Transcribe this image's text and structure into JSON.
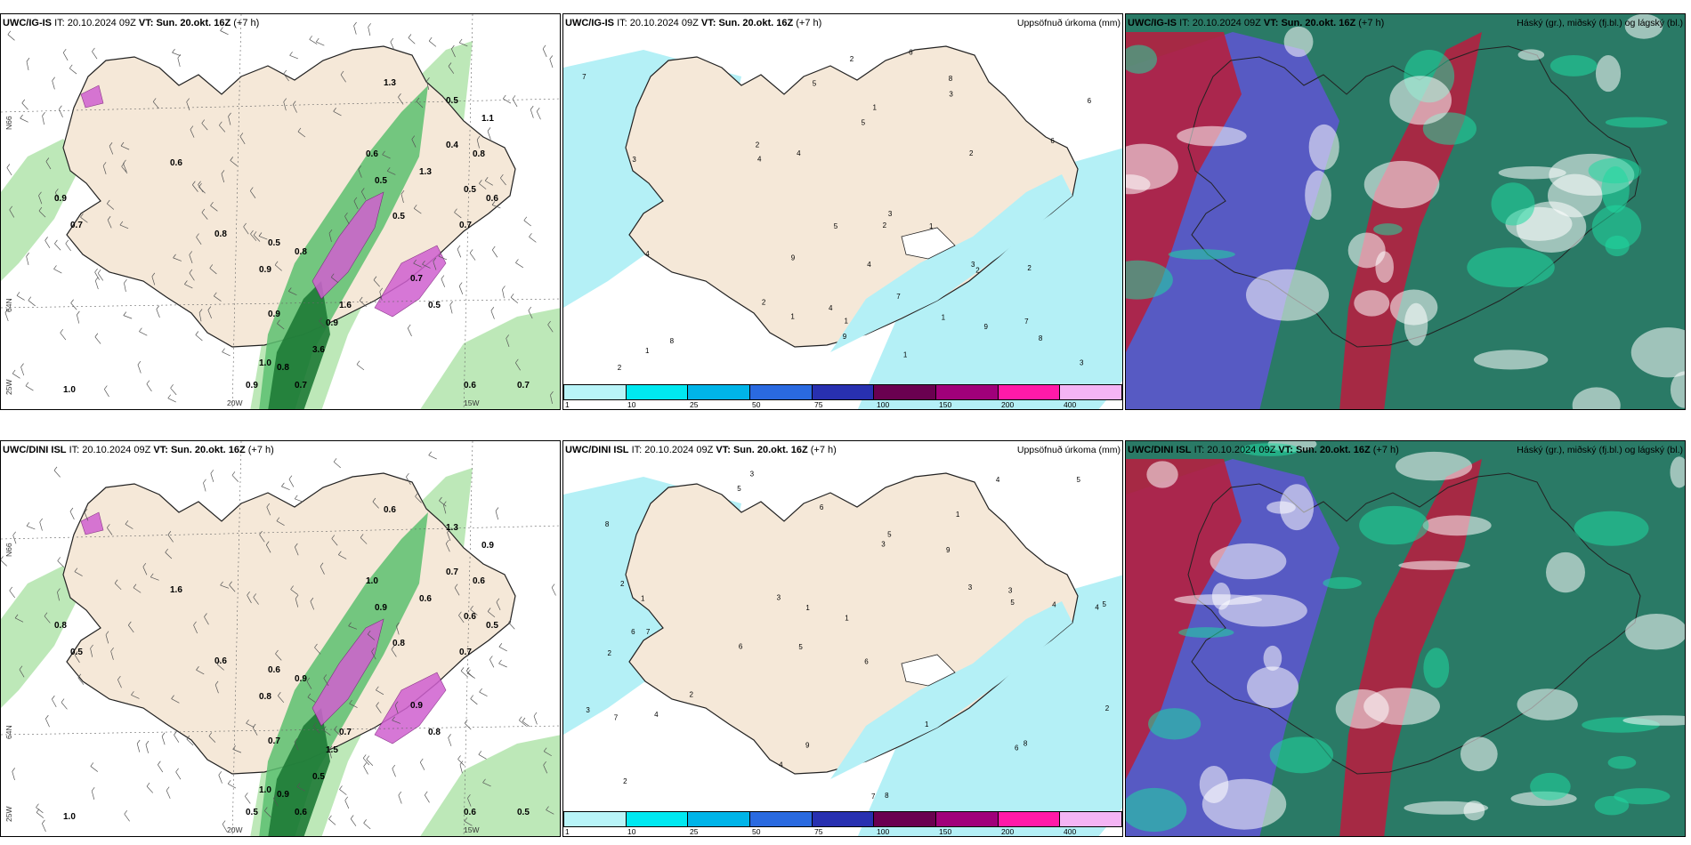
{
  "panels": {
    "top_left": {
      "header": {
        "model": "UWC/IG-IS",
        "it_label": "IT:",
        "issue_time": "20.10.2024 09Z",
        "vt_label": "VT:",
        "valid_time": "Sun. 20.okt. 16Z",
        "lead_time": "(+7 h)",
        "field": ""
      },
      "labels": {
        "lat_top": "N66",
        "lat_mid": "64N",
        "lon_left": "25W",
        "lon_a": "20W",
        "lon_b": "15W"
      },
      "values": [
        "1.0",
        "0.9",
        "0.7",
        "0.6",
        "0.8",
        "0.5",
        "1.1",
        "0.4",
        "1.3",
        "0.6",
        "0.5",
        "0.5",
        "1.6",
        "3.6",
        "0.7",
        "0.8",
        "1.0",
        "0.9",
        "0.9",
        "0.8",
        "0.6",
        "0.7",
        "0.5",
        "0.8",
        "0.6",
        "0.7",
        "0.7",
        "0.5",
        "0.5",
        "0.9",
        "0.9",
        "1.3"
      ]
    },
    "top_mid": {
      "header": {
        "model": "UWC/IG-IS",
        "it_label": "IT:",
        "issue_time": "20.10.2024 09Z",
        "vt_label": "VT:",
        "valid_time": "Sun. 20.okt. 16Z",
        "lead_time": "(+7 h)",
        "field": "Uppsöfnuð úrkoma (mm)"
      },
      "labels": {},
      "values": [
        "1",
        "2",
        "3",
        "4",
        "5",
        "6",
        "7",
        "8",
        "9",
        "2",
        "3",
        "4",
        "1",
        "2",
        "1",
        "2",
        "3",
        "4",
        "5",
        "6",
        "7",
        "8",
        "9",
        "1",
        "2",
        "3",
        "4",
        "5",
        "6",
        "7",
        "8",
        "9",
        "1",
        "2",
        "2",
        "1",
        "1",
        "2",
        "3",
        "4"
      ]
    },
    "top_right": {
      "header": {
        "model": "UWC/IG-IS",
        "it_label": "IT:",
        "issue_time": "20.10.2024 09Z",
        "vt_label": "VT:",
        "valid_time": "Sun. 20.okt. 16Z",
        "lead_time": "(+7 h)",
        "field": "Háský (gr.), miðský (fj.bl.) og lágský (bl.)"
      },
      "labels": {},
      "values": []
    },
    "bot_left": {
      "header": {
        "model": "UWC/DINI ISL",
        "it_label": "IT:",
        "issue_time": "20.10.2024 09Z",
        "vt_label": "VT:",
        "valid_time": "Sun. 20.okt. 16Z",
        "lead_time": "(+7 h)",
        "field": ""
      },
      "labels": {
        "lat_top": "N66",
        "lat_mid": "64N",
        "lon_left": "25W",
        "lon_a": "20W",
        "lon_b": "15W"
      },
      "values": [
        "1.0",
        "0.8",
        "0.5",
        "1.6",
        "0.6",
        "0.6",
        "0.9",
        "0.7",
        "0.6",
        "1.0",
        "0.9",
        "0.8",
        "0.7",
        "0.5",
        "0.6",
        "0.9",
        "1.0",
        "0.7",
        "0.8",
        "0.9",
        "0.6",
        "0.5",
        "1.3",
        "0.6",
        "0.5",
        "0.7",
        "0.9",
        "0.8",
        "0.6",
        "0.5",
        "1.5",
        "0.6"
      ]
    },
    "bot_mid": {
      "header": {
        "model": "UWC/DINI ISL",
        "it_label": "IT:",
        "issue_time": "20.10.2024 09Z",
        "vt_label": "VT:",
        "valid_time": "Sun. 20.okt. 16Z",
        "lead_time": "(+7 h)",
        "field": "Uppsöfnuð úrkoma (mm)"
      },
      "labels": {},
      "values": [
        "3",
        "1",
        "4",
        "5",
        "6",
        "7",
        "8",
        "9",
        "2",
        "3",
        "1",
        "2",
        "5",
        "6",
        "7",
        "8",
        "9",
        "4",
        "3",
        "2",
        "1",
        "6",
        "5",
        "4",
        "3",
        "2",
        "1",
        "5",
        "8",
        "7",
        "6",
        "5",
        "4",
        "3",
        "1",
        "2",
        "3",
        "4",
        "5",
        "6"
      ]
    },
    "bot_right": {
      "header": {
        "model": "UWC/DINI ISL",
        "it_label": "IT:",
        "issue_time": "20.10.2024 09Z",
        "vt_label": "VT:",
        "valid_time": "Sun. 20.okt. 16Z",
        "lead_time": "(+7 h)",
        "field": "Háský (gr.), miðský (fj.bl.) og lágský (bl.)"
      },
      "labels": {},
      "values": []
    }
  },
  "colorbar": {
    "ticks": [
      "1",
      "10",
      "25",
      "50",
      "75",
      "100",
      "150",
      "200",
      "400"
    ],
    "colors": [
      "#b8f4f8",
      "#00e8f0",
      "#00b4e8",
      "#2a6ae0",
      "#2830b0",
      "#6a0050",
      "#a0007a",
      "#ff1aa8",
      "#f4b4f4"
    ]
  },
  "colors": {
    "land": "#f5e8d8",
    "sea_precip_light": "#b4f0f6",
    "rain_green_light": "#b6e6b0",
    "rain_green_mid": "#5cc070",
    "rain_green_dark": "#1e7a36",
    "snow_pink": "#d060d0",
    "cloud_high": "#b42040",
    "cloud_mid": "#2a7a66",
    "cloud_low": "#5a58c8"
  }
}
